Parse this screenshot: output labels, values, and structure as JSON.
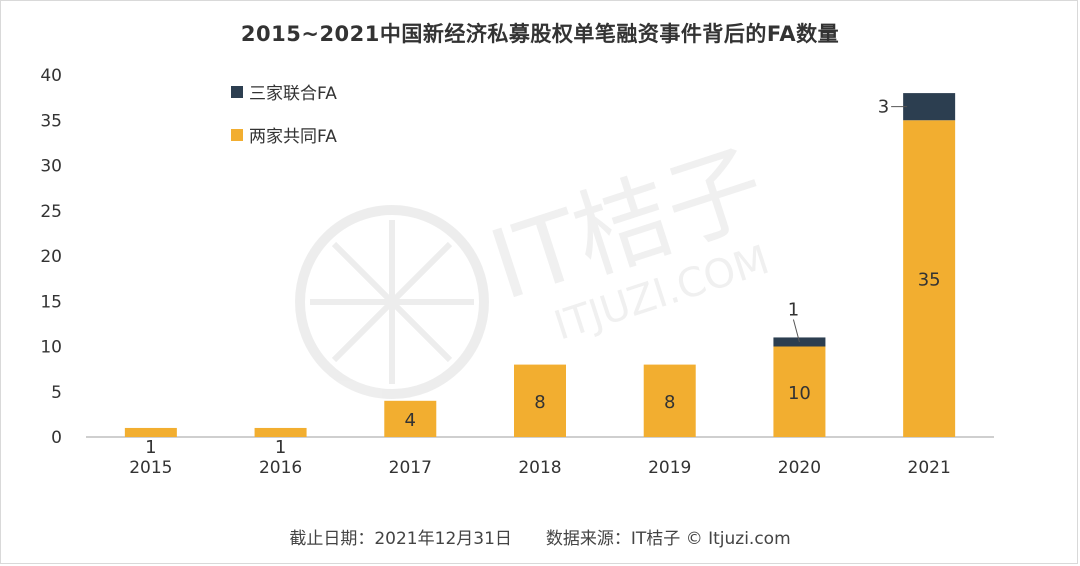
{
  "title": "2015~2021中国新经济私募股权单笔融资事件背后的FA数量",
  "footer": "截止日期：2021年12月31日　　数据来源：IT桔子 © Itjuzi.com",
  "watermark": {
    "brand": "IT桔子",
    "url": "ITJUZI.COM"
  },
  "colors": {
    "two_fa": "#F2AE30",
    "three_fa": "#2C3E50",
    "axis": "#bfbfbf",
    "text": "#333333"
  },
  "chart_data": {
    "type": "bar",
    "stacked": true,
    "categories": [
      "2015",
      "2016",
      "2017",
      "2018",
      "2019",
      "2020",
      "2021"
    ],
    "series": [
      {
        "name": "两家共同FA",
        "values": [
          1,
          1,
          4,
          8,
          8,
          10,
          35
        ],
        "color": "#F2AE30"
      },
      {
        "name": "三家联合FA",
        "values": [
          0,
          0,
          0,
          0,
          0,
          1,
          3
        ],
        "color": "#2C3E50"
      }
    ],
    "y_ticks": [
      "0",
      "5",
      "10",
      "15",
      "20",
      "25",
      "30",
      "35",
      "40"
    ],
    "ylim": [
      0,
      40
    ],
    "legend_position": "top-left",
    "grid": false
  }
}
